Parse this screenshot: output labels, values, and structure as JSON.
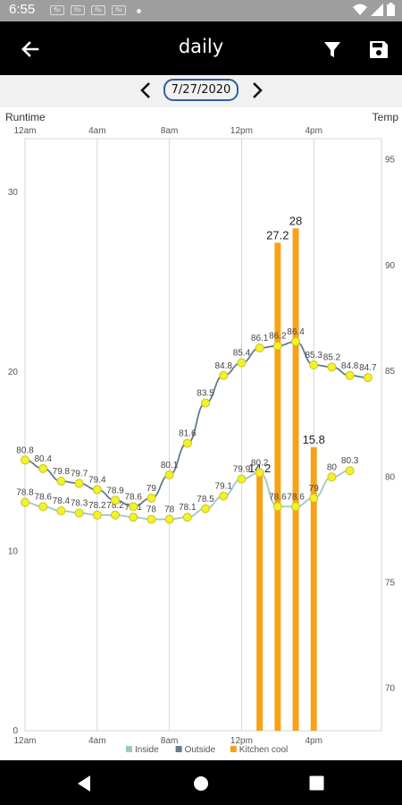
{
  "status_bar": {
    "time": "6:55",
    "notifications": [
      "fio",
      "fio",
      "fio",
      "fio"
    ]
  },
  "app_bar": {
    "title": "daily",
    "back_icon": "arrow-back-icon",
    "filter_icon": "filter-icon",
    "save_icon": "save-icon"
  },
  "date_nav": {
    "date": "7/27/2020",
    "prev_icon": "chevron-left-icon",
    "next_icon": "chevron-right-icon"
  },
  "colors": {
    "inside": "#9cc9c0",
    "outside": "#607d8b",
    "kitchen_cool": "#f7a21b",
    "point_fill": "#f4f12a",
    "point_stroke": "#c9c51a",
    "grid": "#d6d6d6"
  },
  "chart_data": {
    "type": "line",
    "xlabel": "",
    "left_axis_title": "Runtime",
    "right_axis_title": "Temp",
    "x_ticks": [
      "12am",
      "4am",
      "8am",
      "12pm",
      "4pm"
    ],
    "x_tick_hours": [
      0,
      4,
      8,
      12,
      16
    ],
    "x_range_hours": [
      0,
      19.75
    ],
    "left_ylim": [
      0,
      33
    ],
    "left_ticks": [
      "0",
      "10",
      "20",
      "30"
    ],
    "left_tick_values": [
      0,
      10,
      20,
      30
    ],
    "right_ylim": [
      68,
      96
    ],
    "right_ticks": [
      "70",
      "75",
      "80",
      "85",
      "90",
      "95"
    ],
    "right_tick_values": [
      70,
      75,
      80,
      85,
      90,
      95
    ],
    "grid": "vertical",
    "legend_position": "bottom-center",
    "series": [
      {
        "name": "Inside",
        "axis": "right",
        "hours": [
          0,
          1,
          2,
          3,
          4,
          5,
          6,
          7,
          8,
          9,
          10,
          11,
          12,
          13,
          14,
          15,
          16,
          17,
          18
        ],
        "values": [
          78.8,
          78.6,
          78.4,
          78.3,
          78.2,
          78.2,
          78.1,
          78,
          78,
          78.1,
          78.5,
          79.1,
          79.9,
          80.2,
          78.6,
          78.6,
          79,
          80,
          80.3
        ],
        "labels": [
          "78.8",
          "78.6",
          "78.4",
          "78.3",
          "78.2",
          "78.2",
          "78.1",
          "78",
          "78",
          "78.1",
          "78.5",
          "79.1",
          "79.9",
          "80.2",
          "78.6",
          "78.6",
          "79",
          "80",
          "80.3"
        ]
      },
      {
        "name": "Outside",
        "axis": "right",
        "hours": [
          0,
          1,
          2,
          3,
          4,
          5,
          6,
          7,
          8,
          9,
          10,
          11,
          12,
          13,
          14,
          15,
          16,
          17,
          18,
          19
        ],
        "values": [
          80.8,
          80.4,
          79.8,
          79.7,
          79.4,
          78.9,
          78.6,
          79,
          80.1,
          81.6,
          83.5,
          84.8,
          85.4,
          86.1,
          86.2,
          86.4,
          85.3,
          85.2,
          84.8,
          84.7
        ],
        "labels": [
          "80.8",
          "80.4",
          "79.8",
          "79.7",
          "79.4",
          "78.9",
          "78.6",
          "79",
          "80.1",
          "81.6",
          "83.5",
          "84.8",
          "85.4",
          "86.1",
          "86.2",
          "86.4",
          "85.3",
          "85.2",
          "84.8",
          "84.7"
        ]
      },
      {
        "name": "Kitchen cool",
        "type": "bar",
        "axis": "left",
        "hours": [
          13,
          14,
          15,
          16
        ],
        "values": [
          14.2,
          27.2,
          28,
          15.8
        ],
        "labels": [
          "14.2",
          "27.2",
          "28",
          "15.8"
        ]
      }
    ]
  }
}
